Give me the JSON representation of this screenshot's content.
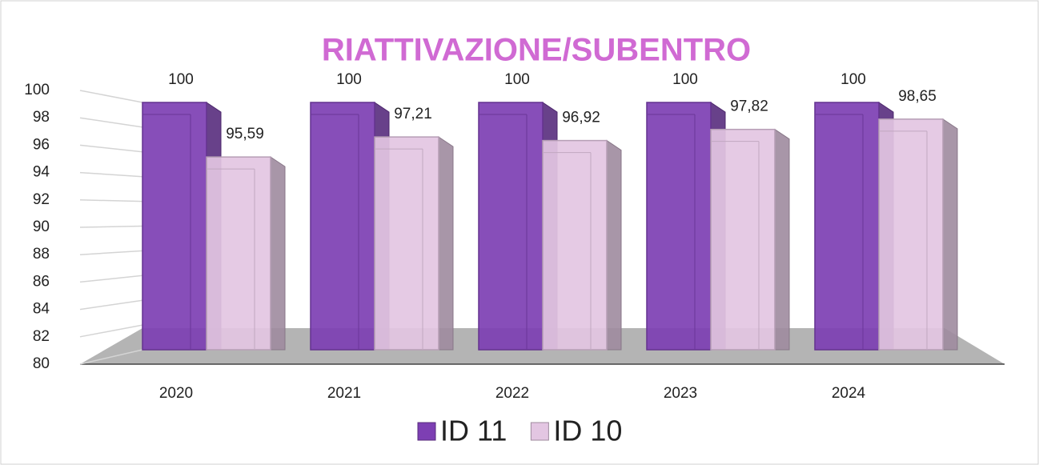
{
  "chart_data": {
    "type": "bar3d",
    "title": "RIATTIVAZIONE/SUBENTRO",
    "categories": [
      "2020",
      "2021",
      "2022",
      "2023",
      "2024"
    ],
    "series": [
      {
        "name": "ID 11",
        "color": "#7d3fb3",
        "values": [
          100,
          100,
          100,
          100,
          100
        ]
      },
      {
        "name": "ID 10",
        "color": "#e3c6e2",
        "values": [
          95.59,
          97.21,
          96.92,
          97.82,
          98.65
        ],
        "value_labels": [
          "95,59",
          "97,21",
          "96,92",
          "97,82",
          "98,65"
        ]
      }
    ],
    "ylim": [
      80,
      100
    ],
    "yticks": [
      80,
      82,
      84,
      86,
      88,
      90,
      92,
      94,
      96,
      98,
      100
    ],
    "grid": true,
    "legend": "bottom"
  }
}
